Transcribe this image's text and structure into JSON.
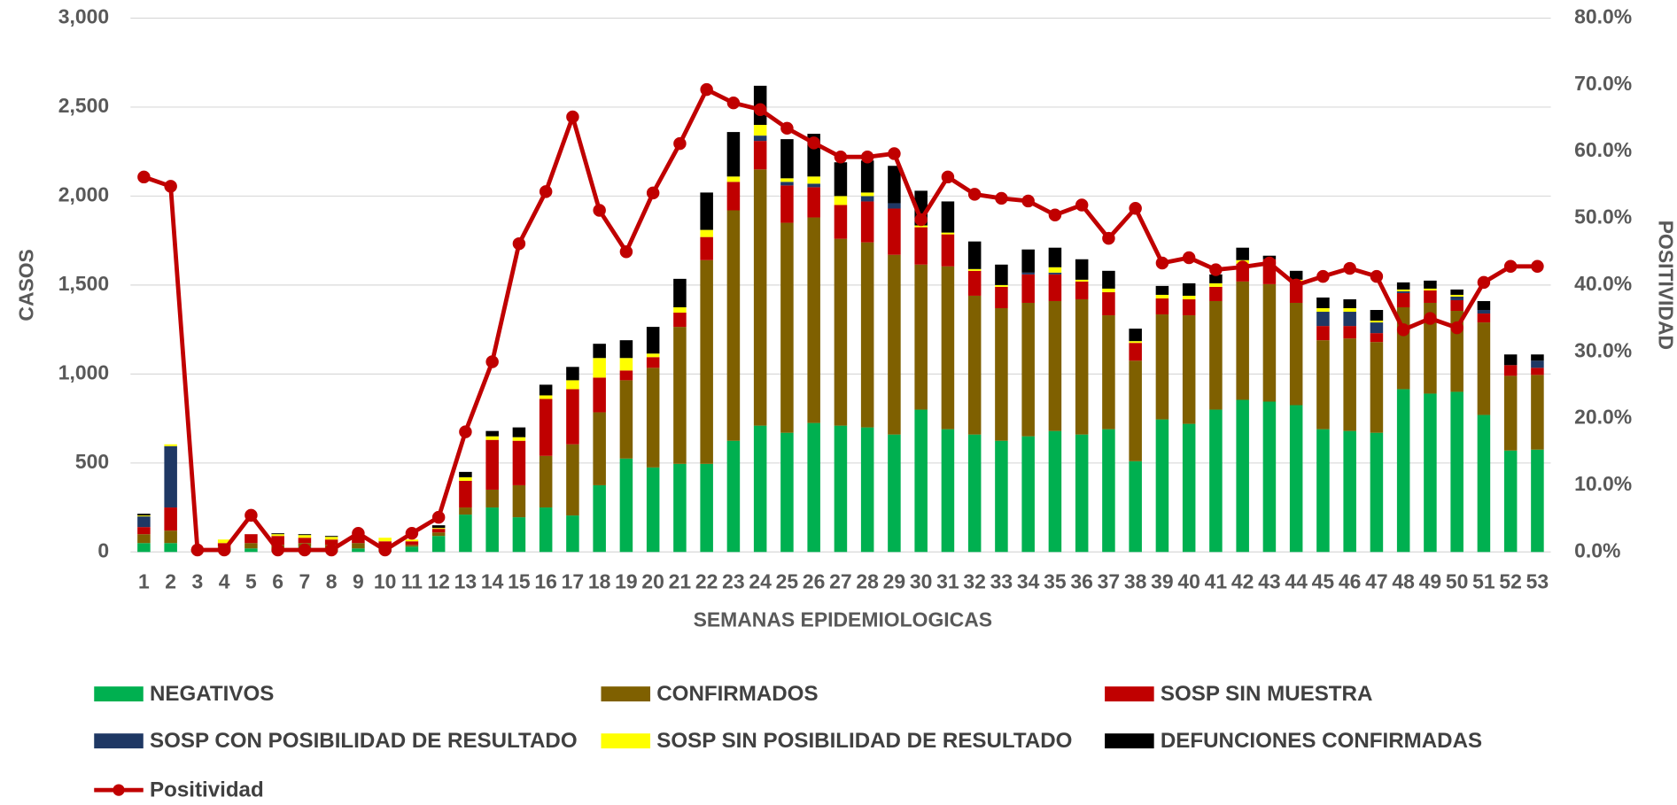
{
  "chart_data": {
    "type": "stacked-bar-line",
    "xlabel": "SEMANAS EPIDEMIOLOGICAS",
    "ylabel": "CASOS",
    "y2label": "POSITIVIDAD",
    "categories": [
      "1",
      "2",
      "3",
      "4",
      "5",
      "6",
      "7",
      "8",
      "9",
      "10",
      "11",
      "12",
      "13",
      "14",
      "15",
      "16",
      "17",
      "18",
      "19",
      "20",
      "21",
      "22",
      "23",
      "24",
      "25",
      "26",
      "27",
      "28",
      "29",
      "30",
      "31",
      "32",
      "33",
      "34",
      "35",
      "36",
      "37",
      "38",
      "39",
      "40",
      "41",
      "42",
      "43",
      "44",
      "45",
      "46",
      "47",
      "48",
      "49",
      "50",
      "51",
      "52",
      "53"
    ],
    "ylim": [
      0,
      3000
    ],
    "yticks": [
      0,
      500,
      {
        "value": 1000,
        "label": "1,000"
      },
      {
        "value": 1500,
        "label": "1,500"
      },
      {
        "value": 2000,
        "label": "2,000"
      },
      {
        "value": 2500,
        "label": "2,500"
      },
      {
        "value": 3000,
        "label": "3,000"
      }
    ],
    "y2lim": [
      0,
      80
    ],
    "y2ticks": [
      {
        "value": 0,
        "label": "0.0%"
      },
      {
        "value": 10,
        "label": "10.0%"
      },
      {
        "value": 20,
        "label": "20.0%"
      },
      {
        "value": 30,
        "label": "30.0%"
      },
      {
        "value": 40,
        "label": "40.0%"
      },
      {
        "value": 50,
        "label": "50.0%"
      },
      {
        "value": 60,
        "label": "60.0%"
      },
      {
        "value": 70,
        "label": "70.0%"
      },
      {
        "value": 80,
        "label": "80.0%"
      }
    ],
    "grid": true,
    "legend": "bottom",
    "series": [
      {
        "name": "NEGATIVOS",
        "color": "#00b050",
        "type": "bar",
        "values": [
          50,
          50,
          5,
          10,
          20,
          10,
          30,
          10,
          20,
          10,
          30,
          90,
          210,
          250,
          195,
          250,
          205,
          375,
          525,
          475,
          495,
          495,
          625,
          710,
          670,
          725,
          710,
          700,
          660,
          800,
          690,
          660,
          625,
          650,
          680,
          660,
          690,
          510,
          745,
          720,
          800,
          855,
          845,
          825,
          690,
          680,
          670,
          915,
          890,
          900,
          770,
          570,
          575
        ]
      },
      {
        "name": "CONFIRMADOS",
        "color": "#7f6000",
        "type": "bar",
        "values": [
          50,
          70,
          5,
          20,
          30,
          30,
          20,
          30,
          30,
          20,
          10,
          20,
          40,
          100,
          180,
          290,
          400,
          410,
          440,
          560,
          770,
          1145,
          1295,
          1440,
          1180,
          1155,
          1050,
          1040,
          1010,
          815,
          915,
          780,
          745,
          750,
          730,
          760,
          640,
          565,
          590,
          610,
          610,
          665,
          660,
          575,
          500,
          520,
          510,
          460,
          510,
          455,
          520,
          420,
          420
        ]
      },
      {
        "name": "SOSP SIN MUESTRA",
        "color": "#c00000",
        "type": "bar",
        "values": [
          40,
          130,
          5,
          20,
          50,
          50,
          30,
          30,
          30,
          30,
          20,
          20,
          150,
          280,
          250,
          320,
          310,
          195,
          55,
          60,
          80,
          130,
          160,
          160,
          210,
          170,
          190,
          230,
          260,
          210,
          180,
          140,
          120,
          160,
          150,
          100,
          130,
          100,
          90,
          90,
          80,
          100,
          140,
          100,
          80,
          70,
          50,
          80,
          70,
          60,
          50,
          60,
          40
        ]
      },
      {
        "name": "SOSP CON POSIBILIDAD DE RESULTADO",
        "color": "#1f3864",
        "type": "bar",
        "values": [
          60,
          345,
          0,
          0,
          0,
          0,
          0,
          0,
          0,
          0,
          0,
          0,
          0,
          0,
          0,
          0,
          0,
          0,
          0,
          0,
          0,
          0,
          0,
          30,
          20,
          20,
          0,
          30,
          30,
          0,
          0,
          0,
          0,
          10,
          10,
          0,
          0,
          0,
          0,
          0,
          0,
          0,
          0,
          20,
          80,
          80,
          60,
          10,
          0,
          20,
          20,
          0,
          40
        ]
      },
      {
        "name": "SOSP SIN POSIBILIDAD DE RESULTADO",
        "color": "#ffff00",
        "type": "bar",
        "values": [
          5,
          10,
          0,
          20,
          0,
          10,
          15,
          15,
          10,
          20,
          10,
          5,
          20,
          20,
          20,
          20,
          50,
          110,
          70,
          20,
          30,
          40,
          30,
          60,
          20,
          40,
          50,
          20,
          0,
          10,
          10,
          10,
          10,
          0,
          30,
          10,
          20,
          10,
          20,
          20,
          20,
          20,
          0,
          10,
          20,
          20,
          10,
          10,
          10,
          10,
          0,
          0,
          0
        ]
      },
      {
        "name": "DEFUNCIONES CONFIRMADAS",
        "color": "#000000",
        "type": "bar",
        "values": [
          10,
          0,
          0,
          0,
          0,
          5,
          5,
          5,
          0,
          0,
          0,
          15,
          30,
          30,
          55,
          60,
          75,
          80,
          100,
          150,
          160,
          210,
          250,
          220,
          220,
          240,
          190,
          180,
          210,
          195,
          175,
          155,
          115,
          130,
          110,
          115,
          100,
          70,
          50,
          70,
          50,
          70,
          20,
          50,
          60,
          50,
          60,
          40,
          45,
          30,
          50,
          60,
          35
        ]
      },
      {
        "name": "Positividad",
        "color": "#c00000",
        "type": "line",
        "axis": "y2",
        "values": [
          56.2,
          54.8,
          0.3,
          0.3,
          5.5,
          0.3,
          0.3,
          0.3,
          2.8,
          0.3,
          2.8,
          5.2,
          18,
          28.5,
          46.2,
          54,
          65.2,
          51.2,
          45,
          53.8,
          61.2,
          69.3,
          67.3,
          66.3,
          63.5,
          61.3,
          59.2,
          59.2,
          59.7,
          49.8,
          56.2,
          53.6,
          53,
          52.6,
          50.5,
          52,
          47,
          51.5,
          43.3,
          44.1,
          42.3,
          42.7,
          43.3,
          40,
          41.3,
          42.5,
          41.3,
          33.3,
          35,
          33.6,
          40.4,
          42.8,
          42.8
        ]
      }
    ]
  }
}
